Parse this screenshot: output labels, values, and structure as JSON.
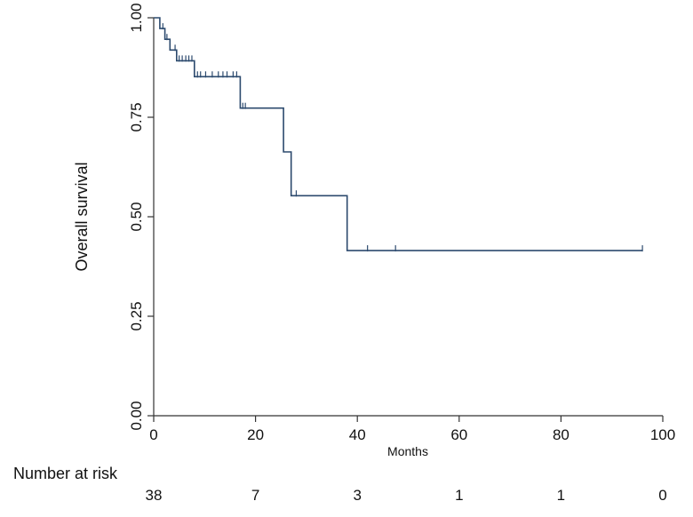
{
  "chart_data": {
    "type": "line",
    "title": "",
    "xlabel": "Months",
    "ylabel": "Overall survival",
    "xlim": [
      0,
      100
    ],
    "ylim": [
      0,
      1
    ],
    "x_ticks": [
      0,
      20,
      40,
      60,
      80,
      100
    ],
    "x_tick_labels": [
      "0",
      "20",
      "40",
      "60",
      "80",
      "100"
    ],
    "y_ticks": [
      0,
      0.25,
      0.5,
      0.75,
      1
    ],
    "y_tick_labels": [
      "0.00",
      "0.25",
      "0.50",
      "0.75",
      "1.00"
    ],
    "grid": false,
    "line_color": "#2c4a6e",
    "series": [
      {
        "steps": [
          [
            0,
            1.0
          ],
          [
            1.2,
            1.0
          ],
          [
            1.2,
            0.973
          ],
          [
            2.2,
            0.973
          ],
          [
            2.2,
            0.946
          ],
          [
            3.2,
            0.946
          ],
          [
            3.2,
            0.919
          ],
          [
            4.5,
            0.919
          ],
          [
            4.5,
            0.892
          ],
          [
            8,
            0.892
          ],
          [
            8,
            0.852
          ],
          [
            17,
            0.852
          ],
          [
            17,
            0.773
          ],
          [
            25.5,
            0.773
          ],
          [
            25.5,
            0.663
          ],
          [
            27,
            0.663
          ],
          [
            27,
            0.553
          ],
          [
            38,
            0.553
          ],
          [
            38,
            0.415
          ],
          [
            96,
            0.415
          ]
        ],
        "censor_marks": [
          [
            1.8,
            0.973
          ],
          [
            2.6,
            0.946
          ],
          [
            4.2,
            0.919
          ],
          [
            5.0,
            0.892
          ],
          [
            5.6,
            0.892
          ],
          [
            6.3,
            0.892
          ],
          [
            6.9,
            0.892
          ],
          [
            7.5,
            0.892
          ],
          [
            8.6,
            0.852
          ],
          [
            9.2,
            0.852
          ],
          [
            10.2,
            0.852
          ],
          [
            11.5,
            0.852
          ],
          [
            12.7,
            0.852
          ],
          [
            13.6,
            0.852
          ],
          [
            14.4,
            0.852
          ],
          [
            15.6,
            0.852
          ],
          [
            16.3,
            0.852
          ],
          [
            17.5,
            0.773
          ],
          [
            18.0,
            0.773
          ],
          [
            28,
            0.553
          ],
          [
            42,
            0.415
          ],
          [
            47.5,
            0.415
          ],
          [
            96,
            0.415
          ]
        ]
      }
    ],
    "risk_table": {
      "title": "Number at risk",
      "times": [
        0,
        20,
        40,
        60,
        80,
        100
      ],
      "counts": [
        "38",
        "7",
        "3",
        "1",
        "1",
        "0"
      ]
    }
  }
}
